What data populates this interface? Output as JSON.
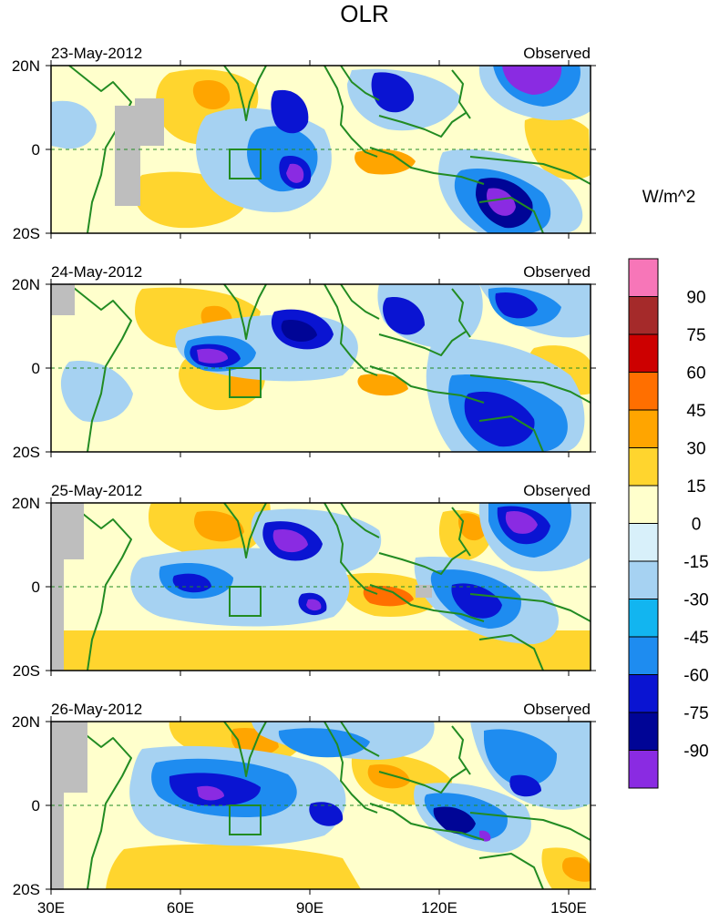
{
  "title": "OLR",
  "units": "W/m^2",
  "panels": [
    {
      "date": "23-May-2012",
      "tag": "Observed"
    },
    {
      "date": "24-May-2012",
      "tag": "Observed"
    },
    {
      "date": "25-May-2012",
      "tag": "Observed"
    },
    {
      "date": "26-May-2012",
      "tag": "Observed"
    }
  ],
  "lat_ticks": [
    "20N",
    "0",
    "20S"
  ],
  "lon_ticks": [
    "30E",
    "60E",
    "90E",
    "120E",
    "150E"
  ],
  "colorbar": {
    "labels": [
      "90",
      "75",
      "60",
      "45",
      "30",
      "15",
      "0",
      "-15",
      "-30",
      "-45",
      "-60",
      "-75",
      "-90"
    ],
    "colors": [
      "#f776b8",
      "#a52a2a",
      "#cd0000",
      "#ff6f00",
      "#ffa500",
      "#ffd52e",
      "#ffffcc",
      "#d8f0fa",
      "#a6d2f2",
      "#12b5f0",
      "#1e8cf0",
      "#0a14d2",
      "#000596",
      "#8a2be2"
    ]
  },
  "map_colors": {
    "coast": "#228b22",
    "nodata": "#bebebe"
  }
}
